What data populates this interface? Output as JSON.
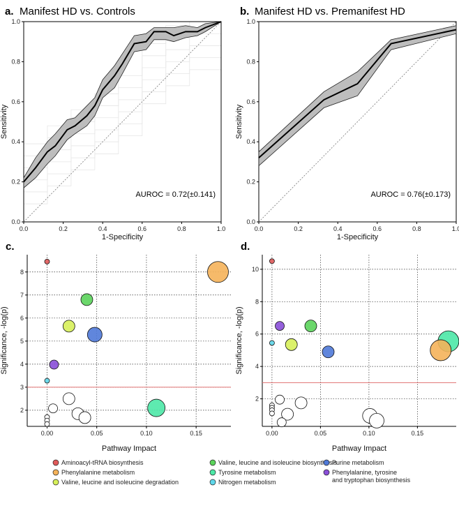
{
  "chart_data": [
    {
      "type": "line",
      "panel": "a.",
      "title": "Manifest HD vs. Controls",
      "xlabel": "1-Specificity",
      "ylabel": "Sensitivity",
      "xlim": [
        0,
        1
      ],
      "ylim": [
        0,
        1
      ],
      "xticks": [
        "0.0",
        "0.2",
        "0.4",
        "0.6",
        "0.8",
        "1.0"
      ],
      "yticks": [
        "0.0",
        "0.2",
        "0.4",
        "0.6",
        "0.8",
        "1.0"
      ],
      "auroc": "AUROC = 0.72(±0.141)",
      "series": [
        {
          "name": "mean ROC",
          "x": [
            0,
            0.06,
            0.12,
            0.16,
            0.22,
            0.26,
            0.32,
            0.36,
            0.4,
            0.46,
            0.5,
            0.56,
            0.62,
            0.66,
            0.72,
            0.76,
            0.82,
            0.88,
            0.92,
            1.0
          ],
          "y": [
            0.2,
            0.27,
            0.35,
            0.38,
            0.46,
            0.48,
            0.53,
            0.58,
            0.66,
            0.73,
            0.79,
            0.89,
            0.9,
            0.95,
            0.95,
            0.93,
            0.95,
            0.95,
            0.97,
            1.0
          ],
          "upper": [
            0.22,
            0.32,
            0.4,
            0.44,
            0.51,
            0.52,
            0.58,
            0.62,
            0.71,
            0.78,
            0.84,
            0.93,
            0.94,
            0.97,
            0.97,
            0.97,
            0.98,
            0.97,
            0.99,
            1.0
          ],
          "lower": [
            0.17,
            0.22,
            0.29,
            0.33,
            0.41,
            0.44,
            0.48,
            0.53,
            0.62,
            0.67,
            0.74,
            0.85,
            0.86,
            0.91,
            0.91,
            0.9,
            0.92,
            0.93,
            0.95,
            1.0
          ]
        }
      ]
    },
    {
      "type": "line",
      "panel": "b.",
      "title": "Manifest HD vs. Premanifest HD",
      "xlabel": "1-Specificity",
      "ylabel": "Sensitivity",
      "xlim": [
        0,
        1
      ],
      "ylim": [
        0,
        1
      ],
      "xticks": [
        "0.0",
        "0.2",
        "0.4",
        "0.6",
        "0.8",
        "1.0"
      ],
      "yticks": [
        "0.0",
        "0.2",
        "0.4",
        "0.6",
        "0.8",
        "1.0"
      ],
      "auroc": "AUROC = 0.76(±0.173)",
      "series": [
        {
          "name": "mean ROC",
          "x": [
            0,
            0.33,
            0.5,
            0.67,
            1.0
          ],
          "y": [
            0.32,
            0.61,
            0.69,
            0.89,
            0.96
          ],
          "upper": [
            0.35,
            0.65,
            0.75,
            0.91,
            0.98
          ],
          "lower": [
            0.28,
            0.57,
            0.63,
            0.86,
            0.94
          ]
        }
      ]
    },
    {
      "type": "scatter",
      "panel": "c.",
      "xlabel": "Pathway Impact",
      "ylabel": "Significance, -log(p)",
      "xlim": [
        -0.02,
        0.185
      ],
      "ylim": [
        1.3,
        8.75
      ],
      "xticks": [
        0,
        0.05,
        0.1,
        0.15
      ],
      "xtick_labels": [
        "0.00",
        "0.05",
        "0.10",
        "0.15"
      ],
      "yticks": [
        2,
        3,
        4,
        5,
        6,
        7,
        8
      ],
      "ytick_labels": [
        "2",
        "3",
        "4",
        "5",
        "6",
        "7",
        "8"
      ],
      "threshold": 3,
      "points": [
        {
          "x": 0,
          "y": 8.45,
          "size": "s",
          "color": "#e05a5a"
        },
        {
          "x": 0.172,
          "y": 8.0,
          "size": "xl",
          "color": "#f5b35a"
        },
        {
          "x": 0.04,
          "y": 6.8,
          "size": "m",
          "color": "#5bd35b"
        },
        {
          "x": 0.022,
          "y": 5.65,
          "size": "m",
          "color": "#d7f05a"
        },
        {
          "x": 0.048,
          "y": 5.28,
          "size": "l",
          "color": "#4f79d8"
        },
        {
          "x": 0.007,
          "y": 3.98,
          "size": "s2",
          "color": "#8a4fd8"
        },
        {
          "x": 0,
          "y": 3.28,
          "size": "s",
          "color": "#5fd7ea"
        },
        {
          "x": 0.11,
          "y": 2.1,
          "size": "l2",
          "color": "#4de8a7"
        },
        {
          "x": 0.022,
          "y": 2.5,
          "size": "m",
          "color": "#ffffff"
        },
        {
          "x": 0.006,
          "y": 2.08,
          "size": "s2",
          "color": "#ffffff"
        },
        {
          "x": 0.031,
          "y": 1.85,
          "size": "m",
          "color": "#ffffff"
        },
        {
          "x": 0.038,
          "y": 1.68,
          "size": "m",
          "color": "#ffffff"
        },
        {
          "x": 0,
          "y": 1.7,
          "size": "s",
          "color": "#ffffff"
        },
        {
          "x": 0,
          "y": 1.55,
          "size": "s",
          "color": "#ffffff"
        },
        {
          "x": 0,
          "y": 1.4,
          "size": "s",
          "color": "#ffffff"
        }
      ]
    },
    {
      "type": "scatter",
      "panel": "d.",
      "xlabel": "Pathway Impact",
      "ylabel": "Significance, -log(p)",
      "xlim": [
        -0.01,
        0.19
      ],
      "ylim": [
        0.3,
        10.9
      ],
      "xticks": [
        0,
        0.05,
        0.1,
        0.15
      ],
      "xtick_labels": [
        "0.00",
        "0.05",
        "0.10",
        "0.15"
      ],
      "yticks": [
        2,
        4,
        6,
        8,
        10
      ],
      "ytick_labels": [
        "2",
        "4",
        "6",
        "8",
        "10"
      ],
      "threshold": 3,
      "points": [
        {
          "x": 0,
          "y": 10.5,
          "size": "s",
          "color": "#e05a5a"
        },
        {
          "x": 0.182,
          "y": 5.55,
          "size": "xl",
          "color": "#4de8a7"
        },
        {
          "x": 0.174,
          "y": 5.0,
          "size": "xl",
          "color": "#f5b35a"
        },
        {
          "x": 0.008,
          "y": 6.5,
          "size": "s2",
          "color": "#8a4fd8"
        },
        {
          "x": 0.04,
          "y": 6.5,
          "size": "m",
          "color": "#5bd35b"
        },
        {
          "x": 0.02,
          "y": 5.35,
          "size": "m",
          "color": "#d7f05a"
        },
        {
          "x": 0,
          "y": 5.45,
          "size": "s",
          "color": "#5fd7ea"
        },
        {
          "x": 0.058,
          "y": 4.9,
          "size": "m",
          "color": "#4f79d8"
        },
        {
          "x": 0.008,
          "y": 1.95,
          "size": "s2",
          "color": "#ffffff"
        },
        {
          "x": 0.03,
          "y": 1.75,
          "size": "m",
          "color": "#ffffff"
        },
        {
          "x": 0.016,
          "y": 1.05,
          "size": "m",
          "color": "#ffffff"
        },
        {
          "x": 0.01,
          "y": 0.55,
          "size": "s2",
          "color": "#ffffff"
        },
        {
          "x": 0.101,
          "y": 0.95,
          "size": "l",
          "color": "#ffffff"
        },
        {
          "x": 0.108,
          "y": 0.65,
          "size": "l",
          "color": "#ffffff"
        },
        {
          "x": 0,
          "y": 1.6,
          "size": "s",
          "color": "#ffffff"
        },
        {
          "x": 0,
          "y": 1.45,
          "size": "s",
          "color": "#ffffff"
        },
        {
          "x": 0,
          "y": 1.3,
          "size": "s",
          "color": "#ffffff"
        },
        {
          "x": 0,
          "y": 1.1,
          "size": "s",
          "color": "#ffffff"
        }
      ]
    }
  ],
  "legend": [
    {
      "label": "Aminoacyl-tRNA biosynthesis",
      "color": "#e05a5a"
    },
    {
      "label": "Valine, leucine and isoleucine biosynthesis",
      "color": "#5bd35b"
    },
    {
      "label": "Purine metabolism",
      "color": "#4f79d8"
    },
    {
      "label": "Phenylalanine metabolism",
      "color": "#f5b35a"
    },
    {
      "label": "Tyrosine metabolism",
      "color": "#4de8a7"
    },
    {
      "label": "Phenylalanine, tyrosine",
      "label2": "and tryptophan biosynthesis",
      "color": "#8a4fd8"
    },
    {
      "label": "Valine, leucine and isoleucine degradation",
      "color": "#d7f05a"
    },
    {
      "label": "Nitrogen metabolism",
      "color": "#5fd7ea"
    }
  ]
}
